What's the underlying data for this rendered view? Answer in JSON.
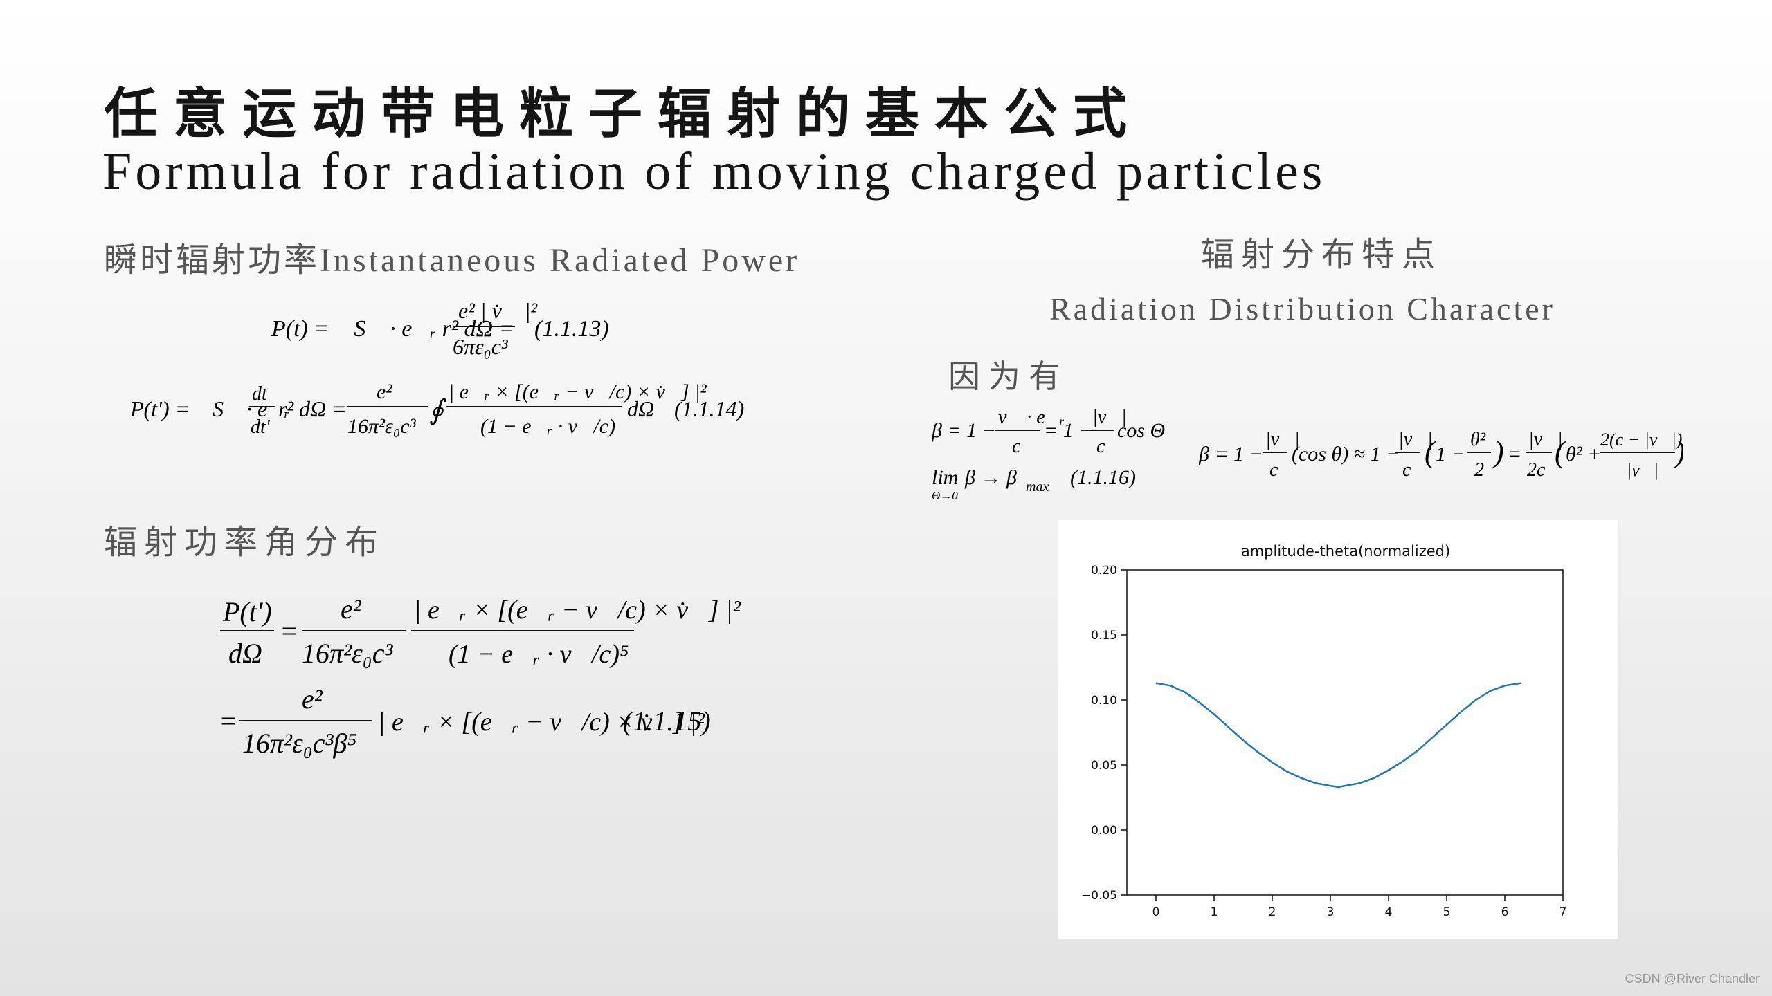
{
  "slide": {
    "title_cn": "任意运动带电粒子辐射的基本公式",
    "title_en": "Formula for radiation of moving charged particles",
    "sections": {
      "instantaneous": "瞬时辐射功率Instantaneous Radiated Power",
      "angular": "辐射功率角分布",
      "distribution_cn": "辐射分布特点",
      "distribution_en": "Radiation Distribution Character",
      "because": "因为有"
    },
    "equation_numbers": {
      "e1113": "(1.1.13)",
      "e1114": "(1.1.14)",
      "e1115": "(1.1.15)",
      "e1116": "(1.1.16)"
    },
    "watermark": "CSDN @River Chandler"
  },
  "chart_data": {
    "type": "line",
    "title": "amplitude-theta(normalized)",
    "xlabel": "",
    "ylabel": "",
    "xlim": [
      -0.5,
      7
    ],
    "ylim": [
      -0.05,
      0.2
    ],
    "xticks": [
      0,
      1,
      2,
      3,
      4,
      5,
      6,
      7
    ],
    "yticks": [
      -0.05,
      0.0,
      0.05,
      0.1,
      0.15,
      0.2
    ],
    "ytick_labels": [
      "−0.05",
      "0.00",
      "0.05",
      "0.10",
      "0.15",
      "0.20"
    ],
    "grid": false,
    "line_color": "#1f77b4",
    "series": [
      {
        "x": [
          0,
          0.25,
          0.5,
          0.75,
          1.0,
          1.25,
          1.5,
          1.75,
          2.0,
          2.25,
          2.5,
          2.75,
          3.0,
          3.14,
          3.25,
          3.5,
          3.75,
          4.0,
          4.25,
          4.5,
          4.75,
          5.0,
          5.25,
          5.5,
          5.75,
          6.0,
          6.28
        ],
        "y": [
          0.113,
          0.111,
          0.106,
          0.098,
          0.089,
          0.079,
          0.069,
          0.06,
          0.052,
          0.045,
          0.04,
          0.036,
          0.034,
          0.033,
          0.034,
          0.036,
          0.04,
          0.046,
          0.053,
          0.061,
          0.071,
          0.081,
          0.091,
          0.1,
          0.107,
          0.111,
          0.113
        ]
      }
    ]
  }
}
